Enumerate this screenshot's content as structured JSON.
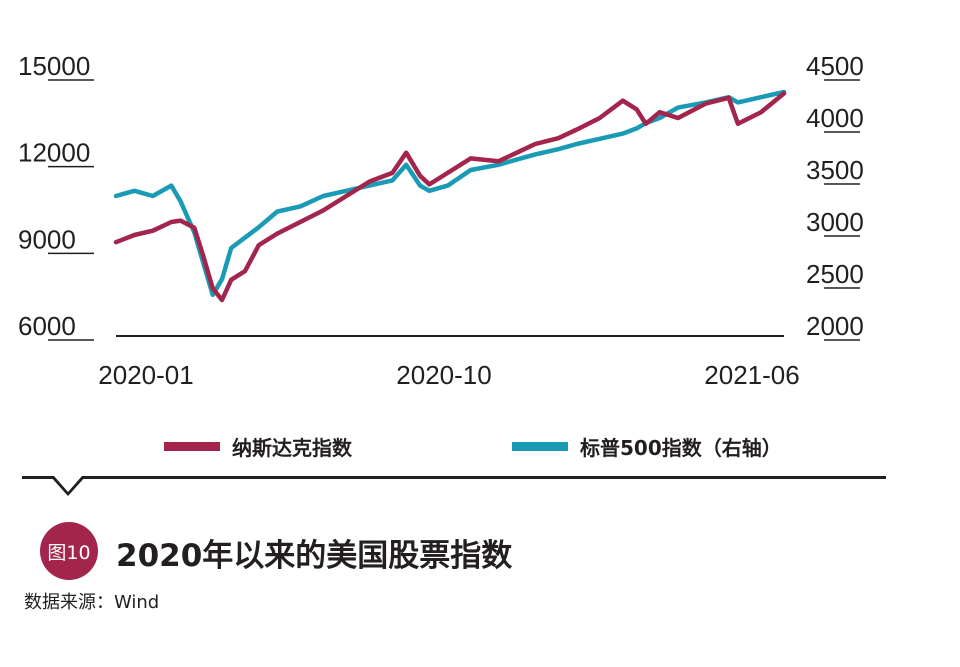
{
  "chart_data": {
    "type": "line",
    "title": "2020年以来的美国股票指数",
    "figure_label": "图10",
    "source": "数据来源：Wind",
    "x_ticks": [
      "2020-01",
      "2020-10",
      "2021-06"
    ],
    "x_range": [
      "2020-01",
      "2021-06"
    ],
    "y_left": {
      "ticks": [
        15000,
        12000,
        9000,
        6000
      ],
      "range": [
        6000,
        15000
      ]
    },
    "y_right": {
      "ticks": [
        4500,
        4000,
        3500,
        3000,
        2500,
        2000
      ],
      "range": [
        2000,
        4500
      ]
    },
    "legend_position": "bottom",
    "series": [
      {
        "name": "纳斯达克指数",
        "axis": "left",
        "color": "#a3254c",
        "x": [
          2020.0,
          2020.04,
          2020.08,
          2020.12,
          2020.14,
          2020.17,
          2020.19,
          2020.21,
          2020.23,
          2020.25,
          2020.28,
          2020.31,
          2020.35,
          2020.4,
          2020.45,
          2020.5,
          2020.55,
          2020.6,
          2020.63,
          2020.66,
          2020.68,
          2020.72,
          2020.77,
          2020.83,
          2020.87,
          2020.91,
          2020.96,
          2021.0,
          2021.05,
          2021.1,
          2021.13,
          2021.15,
          2021.18,
          2021.22,
          2021.28,
          2021.33,
          2021.35,
          2021.4,
          2021.45
        ],
        "values": [
          8900,
          9150,
          9300,
          9600,
          9650,
          9400,
          8400,
          7300,
          6900,
          7600,
          7900,
          8800,
          9200,
          9600,
          10000,
          10500,
          11000,
          11300,
          12000,
          11200,
          10900,
          11300,
          11800,
          11700,
          12000,
          12300,
          12500,
          12800,
          13200,
          13800,
          13500,
          13000,
          13400,
          13200,
          13700,
          13900,
          13000,
          13400,
          14050
        ]
      },
      {
        "name": "标普500指数（右轴）",
        "axis": "right",
        "color": "#1a9bb5",
        "x": [
          2020.0,
          2020.04,
          2020.08,
          2020.12,
          2020.14,
          2020.17,
          2020.19,
          2020.21,
          2020.23,
          2020.25,
          2020.28,
          2020.31,
          2020.35,
          2020.4,
          2020.45,
          2020.5,
          2020.55,
          2020.6,
          2020.63,
          2020.66,
          2020.68,
          2020.72,
          2020.77,
          2020.83,
          2020.87,
          2020.91,
          2020.96,
          2021.0,
          2021.05,
          2021.1,
          2021.13,
          2021.15,
          2021.18,
          2021.22,
          2021.28,
          2021.33,
          2021.35,
          2021.4,
          2021.45
        ],
        "values": [
          3250,
          3300,
          3250,
          3350,
          3200,
          2900,
          2600,
          2300,
          2450,
          2750,
          2850,
          2950,
          3100,
          3150,
          3250,
          3300,
          3350,
          3400,
          3550,
          3350,
          3300,
          3350,
          3500,
          3550,
          3600,
          3650,
          3700,
          3750,
          3800,
          3850,
          3900,
          3950,
          4000,
          4100,
          4150,
          4200,
          4150,
          4200,
          4250
        ]
      }
    ]
  }
}
